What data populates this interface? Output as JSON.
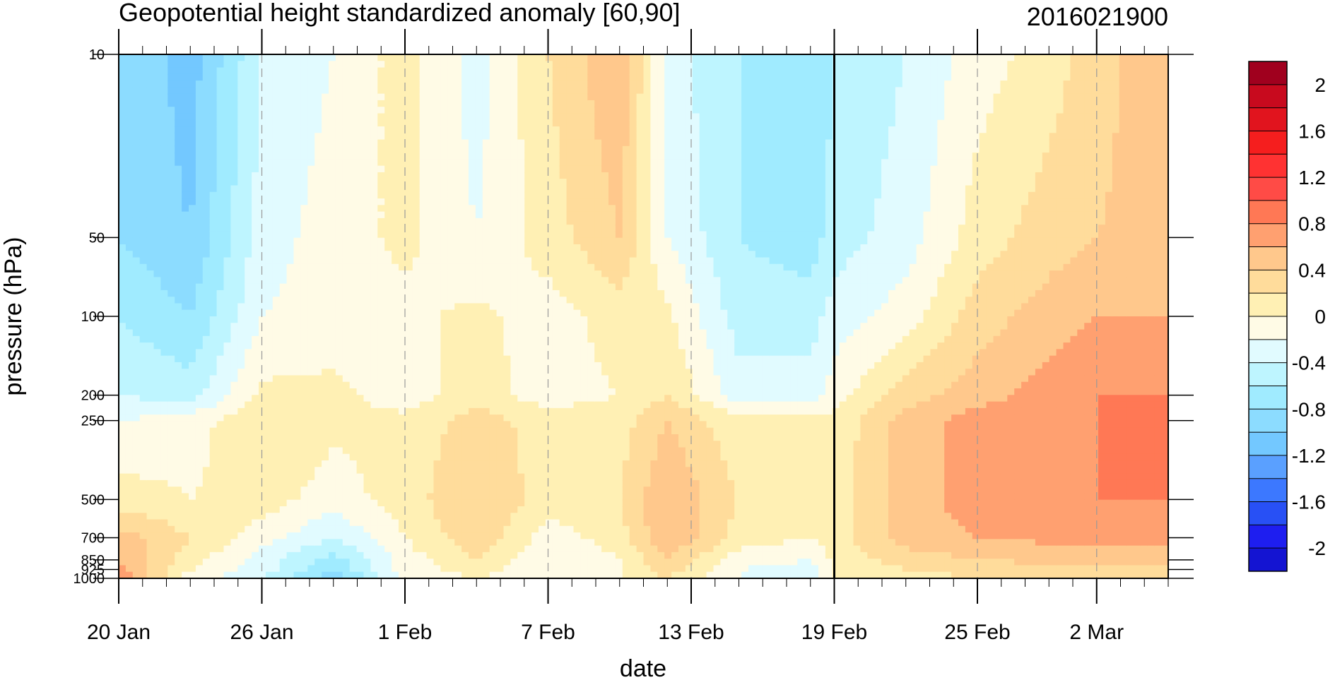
{
  "chart_data": {
    "type": "heatmap",
    "title": "Geopotential height standardized anomaly [60,90]",
    "date_label": "2016021900",
    "xlabel": "date",
    "ylabel": "pressure (hPa)",
    "x_ticks": [
      "20 Jan",
      "26 Jan",
      "1 Feb",
      "7 Feb",
      "13 Feb",
      "19 Feb",
      "25 Feb",
      "2 Mar"
    ],
    "y_ticks": [
      "10",
      "50",
      "100",
      "200",
      "250",
      "500",
      "700",
      "850",
      "925",
      "1000"
    ],
    "y_scale": "log",
    "ylim": [
      1000,
      10
    ],
    "current_date_marker": "19 Feb",
    "colorbar": {
      "levels": [
        -2.2,
        -2.0,
        -1.8,
        -1.6,
        -1.4,
        -1.2,
        -1.0,
        -0.8,
        -0.6,
        -0.4,
        -0.2,
        0.0,
        0.2,
        0.4,
        0.6,
        0.8,
        1.0,
        1.2,
        1.4,
        1.6,
        1.8,
        2.0,
        2.2
      ],
      "labels": [
        "2",
        "1.6",
        "1.2",
        "0.8",
        "0.4",
        "0",
        "-0.4",
        "-0.8",
        "-1.2",
        "-1.6",
        "-2"
      ],
      "colors": [
        "#1414d2",
        "#1e1ef0",
        "#2850f5",
        "#3c78ff",
        "#5aa0ff",
        "#73c8ff",
        "#8cdcff",
        "#a0ebff",
        "#bef5ff",
        "#e1fbff",
        "#fffbe6",
        "#fff0b4",
        "#ffdc9b",
        "#ffc88c",
        "#ffa070",
        "#ff7855",
        "#ff4b46",
        "#ff3232",
        "#f51e1e",
        "#e1141e",
        "#c80a1e",
        "#a0001e"
      ]
    },
    "date_axis_range": [
      "20 Jan",
      "5 Mar"
    ],
    "profiles": [
      {
        "date": "20 Jan",
        "values": [
          -0.8,
          -0.8,
          -0.6,
          -0.4,
          -0.2,
          0.1,
          0.5,
          0.6,
          0.7,
          0.8
        ]
      },
      {
        "date": "23 Jan",
        "values": [
          -1.1,
          -1.0,
          -0.8,
          -0.5,
          -0.1,
          0.0,
          0.2,
          0.1,
          0.0,
          -0.1
        ]
      },
      {
        "date": "26 Jan",
        "values": [
          -0.4,
          -0.3,
          -0.2,
          0.05,
          0.2,
          0.1,
          -0.1,
          -0.3,
          -0.3,
          -0.4
        ]
      },
      {
        "date": "29 Jan",
        "values": [
          -0.2,
          -0.1,
          -0.1,
          0.05,
          0.05,
          -0.1,
          -0.4,
          -0.7,
          -0.8,
          -0.9
        ]
      },
      {
        "date": "1 Feb",
        "values": [
          0.1,
          0.05,
          -0.05,
          -0.1,
          0.05,
          0.1,
          0.0,
          -0.1,
          -0.1,
          -0.2
        ]
      },
      {
        "date": "4 Feb",
        "values": [
          -0.3,
          -0.2,
          0.05,
          0.1,
          0.3,
          0.4,
          0.35,
          0.2,
          0.1,
          0.0
        ]
      },
      {
        "date": "7 Feb",
        "values": [
          0.2,
          0.1,
          -0.1,
          -0.1,
          0.1,
          0.1,
          -0.1,
          -0.2,
          -0.2,
          -0.2
        ]
      },
      {
        "date": "10 Feb",
        "values": [
          0.6,
          0.4,
          0.1,
          0.0,
          0.1,
          0.2,
          0.1,
          0.0,
          0.0,
          0.0
        ]
      },
      {
        "date": "12 Feb",
        "values": [
          -0.3,
          -0.2,
          0.05,
          0.2,
          0.4,
          0.6,
          0.6,
          0.4,
          0.3,
          0.2
        ]
      },
      {
        "date": "15 Feb",
        "values": [
          -0.6,
          -0.6,
          -0.5,
          -0.3,
          0.05,
          0.2,
          0.1,
          -0.1,
          -0.2,
          -0.2
        ]
      },
      {
        "date": "18 Feb",
        "values": [
          -0.8,
          -0.7,
          -0.5,
          -0.3,
          0.05,
          0.1,
          0.0,
          -0.2,
          -0.3,
          -0.3
        ]
      },
      {
        "date": "19 Feb",
        "values": [
          -0.6,
          -0.5,
          -0.3,
          -0.1,
          0.05,
          0.1,
          0.1,
          0.05,
          0.0,
          0.0
        ]
      },
      {
        "date": "22 Feb",
        "values": [
          -0.4,
          -0.3,
          -0.1,
          0.3,
          0.5,
          0.5,
          0.5,
          0.3,
          0.2,
          0.1
        ]
      },
      {
        "date": "25 Feb",
        "values": [
          -0.1,
          0.1,
          0.3,
          0.5,
          0.7,
          0.7,
          0.6,
          0.4,
          0.3,
          0.2
        ]
      },
      {
        "date": "28 Feb",
        "values": [
          0.1,
          0.3,
          0.5,
          0.7,
          0.75,
          0.7,
          0.65,
          0.45,
          0.3,
          0.2
        ]
      },
      {
        "date": "2 Mar",
        "values": [
          0.3,
          0.4,
          0.6,
          0.8,
          0.8,
          0.8,
          0.7,
          0.5,
          0.35,
          0.2
        ]
      },
      {
        "date": "5 Mar",
        "values": [
          0.6,
          0.5,
          0.6,
          0.8,
          0.8,
          0.8,
          0.7,
          0.5,
          0.35,
          0.2
        ]
      }
    ]
  }
}
